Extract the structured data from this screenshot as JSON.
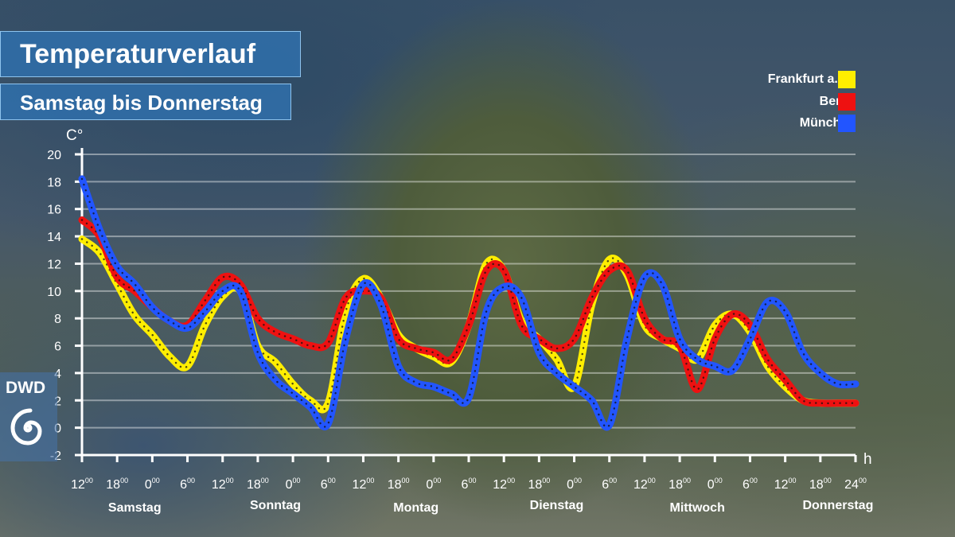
{
  "title": "Temperaturverlauf",
  "subtitle": "Samstag bis Donnerstag",
  "logo": "DWD",
  "chart_data": {
    "type": "line",
    "ylabel": "C°",
    "xlabel": "h",
    "ylim": [
      -2,
      20
    ],
    "yticks": [
      "20",
      "18",
      "16",
      "14",
      "12",
      "10",
      "8",
      "6",
      "4",
      "2",
      "0",
      "-2"
    ],
    "x_ticks": [
      {
        "h": "12",
        "m": "00"
      },
      {
        "h": "18",
        "m": "00"
      },
      {
        "h": "0",
        "m": "00"
      },
      {
        "h": "6",
        "m": "00"
      },
      {
        "h": "12",
        "m": "00"
      },
      {
        "h": "18",
        "m": "00"
      },
      {
        "h": "0",
        "m": "00"
      },
      {
        "h": "6",
        "m": "00"
      },
      {
        "h": "12",
        "m": "00"
      },
      {
        "h": "18",
        "m": "00"
      },
      {
        "h": "0",
        "m": "00"
      },
      {
        "h": "6",
        "m": "00"
      },
      {
        "h": "12",
        "m": "00"
      },
      {
        "h": "18",
        "m": "00"
      },
      {
        "h": "0",
        "m": "00"
      },
      {
        "h": "6",
        "m": "00"
      },
      {
        "h": "12",
        "m": "00"
      },
      {
        "h": "18",
        "m": "00"
      },
      {
        "h": "0",
        "m": "00"
      },
      {
        "h": "6",
        "m": "00"
      },
      {
        "h": "12",
        "m": "00"
      },
      {
        "h": "18",
        "m": "00"
      },
      {
        "h": "24",
        "m": "00"
      }
    ],
    "days": [
      "Samstag",
      "Sonntag",
      "Montag",
      "Dienstag",
      "Mittwoch",
      "Donnerstag"
    ],
    "x": [
      0,
      3,
      6,
      9,
      12,
      15,
      18,
      21,
      24,
      27,
      30,
      33,
      36,
      39,
      42,
      45,
      48,
      51,
      54,
      57,
      60,
      63,
      66,
      69,
      72,
      75,
      78,
      81,
      84,
      87,
      90,
      93,
      96,
      99,
      102,
      105,
      108,
      111,
      114,
      117,
      120,
      123,
      126,
      129,
      132
    ],
    "grid": true,
    "legend_position": "top-right",
    "series": [
      {
        "name": "Frankfurt a. M.",
        "color": "#ffee00",
        "values": [
          13.8,
          12.8,
          10.5,
          8.2,
          6.8,
          5.2,
          4.5,
          7.5,
          9.6,
          10.0,
          6.0,
          4.8,
          3.2,
          2.0,
          1.8,
          8.5,
          10.9,
          9.5,
          6.8,
          5.8,
          5.2,
          4.8,
          7.5,
          12.0,
          11.5,
          7.8,
          6.5,
          5.0,
          3.0,
          9.0,
          12.3,
          11.2,
          7.5,
          6.5,
          5.8,
          5.0,
          7.5,
          8.3,
          7.0,
          4.5,
          3.0,
          2.0,
          1.8,
          1.8,
          1.8
        ]
      },
      {
        "name": "Berlin",
        "color": "#ee1111",
        "values": [
          15.2,
          14.0,
          11.0,
          10.0,
          8.8,
          7.8,
          7.5,
          9.3,
          11.0,
          10.5,
          8.0,
          7.0,
          6.5,
          6.0,
          6.2,
          9.5,
          10.0,
          9.5,
          6.5,
          5.8,
          5.5,
          5.0,
          7.5,
          11.5,
          11.5,
          7.5,
          6.5,
          5.8,
          6.5,
          9.5,
          11.5,
          11.5,
          8.0,
          6.5,
          6.0,
          2.8,
          6.5,
          8.3,
          7.5,
          5.0,
          3.5,
          2.0,
          1.8,
          1.8,
          1.8
        ]
      },
      {
        "name": "München",
        "color": "#2255ff",
        "values": [
          18.2,
          14.5,
          11.8,
          10.5,
          8.8,
          7.8,
          7.3,
          8.5,
          10.0,
          10.0,
          5.5,
          3.5,
          2.5,
          1.5,
          0.3,
          6.5,
          10.5,
          9.0,
          4.5,
          3.3,
          3.0,
          2.5,
          2.2,
          8.5,
          10.3,
          9.5,
          5.5,
          4.0,
          3.0,
          2.0,
          0.2,
          6.5,
          11.0,
          10.5,
          6.5,
          5.0,
          4.5,
          4.2,
          6.5,
          9.2,
          8.5,
          5.5,
          4.0,
          3.2,
          3.2
        ]
      }
    ]
  }
}
